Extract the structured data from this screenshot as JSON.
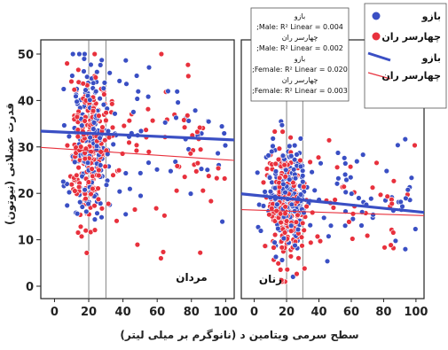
{
  "chart_data": {
    "type": "scatter",
    "ylabel": "قدرت عضلانی (نیوتون)",
    "xlabel": "سطح سرمی ویتامین د (نانوگرم بر میلی لیتر)",
    "ylim": [
      -2,
      52
    ],
    "y_ticks": [
      "0",
      "10",
      "20",
      "30",
      "40",
      "50"
    ],
    "x_ticks": [
      "0",
      "20",
      "40",
      "60",
      "80",
      "100"
    ],
    "grid": false,
    "legend_position": "top-right",
    "series": [
      {
        "name": "بازو",
        "color": "#3a4fc4"
      },
      {
        "name": "چهارسر ران",
        "color": "#e8313d"
      }
    ],
    "panels": [
      {
        "label": "مردان",
        "xlim": [
          -8,
          105
        ],
        "ref_lines": [
          20,
          30
        ],
        "fits": [
          {
            "series": "بازو",
            "x": [
              -8,
              105
            ],
            "y": [
              33.4,
              31.5
            ]
          },
          {
            "series": "چهارسر ران",
            "x": [
              -8,
              105
            ],
            "y": [
              29.9,
              27.1
            ]
          }
        ],
        "cloud": {
          "x_center": 20,
          "x_spread": 10,
          "x_tail": 100,
          "y_center_arm": 32,
          "y_center_thigh": 30,
          "y_spread": 8
        }
      },
      {
        "label": "زنان",
        "xlim": [
          -8,
          105
        ],
        "ref_lines": [
          20,
          30
        ],
        "fits": [
          {
            "series": "بازو",
            "x": [
              -8,
              105
            ],
            "y": [
              19.9,
              15.9
            ]
          },
          {
            "series": "چهارسر ران",
            "x": [
              -8,
              105
            ],
            "y": [
              16.5,
              15.2
            ]
          }
        ],
        "cloud": {
          "x_center": 20,
          "x_spread": 10,
          "x_tail": 100,
          "y_center_arm": 19,
          "y_center_thigh": 17,
          "y_spread": 6
        }
      }
    ],
    "r2_box": [
      "بازو",
      ";Male: R² Linear = 0.004",
      "چهارسر ران",
      ";Male: R² Linear = 0.002",
      "بازو",
      ";Female: R² Linear = 0.020",
      "چهارسر ران",
      ";Female: R² Linear = 0.003"
    ]
  }
}
